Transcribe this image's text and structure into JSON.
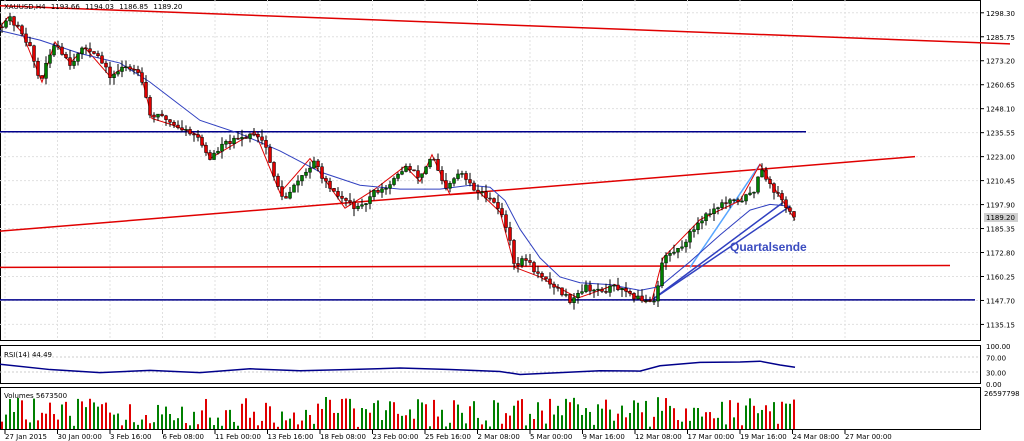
{
  "chart_data": {
    "type": "candlestick",
    "symbol": "XAUUSD,H4",
    "ohlc_header": [
      "1193.66",
      "1194.03",
      "1186.85",
      "1189.20"
    ],
    "current_price": "1189.20",
    "annotation": "Quartalsende",
    "price_axis": {
      "ylim": [
        1127,
        1305
      ],
      "ticks": [
        "1298.30",
        "1285.75",
        "1273.20",
        "1260.65",
        "1248.10",
        "1235.55",
        "1223.00",
        "1210.45",
        "1197.90",
        "1185.35",
        "1172.80",
        "1160.25",
        "1147.70",
        "1135.15"
      ]
    },
    "time_axis": {
      "labels": [
        "27 Jan 2015",
        "30 Jan 00:00",
        "3 Feb 16:00",
        "6 Feb 08:00",
        "11 Feb 00:00",
        "13 Feb 16:00",
        "18 Feb 08:00",
        "23 Feb 00:00",
        "25 Feb 16:00",
        "2 Mar 08:00",
        "5 Mar 00:00",
        "9 Mar 16:00",
        "12 Mar 08:00",
        "17 Mar 00:00",
        "19 Mar 16:00",
        "24 Mar 08:00",
        "27 Mar 00:00"
      ]
    },
    "price_path": [
      [
        0,
        1291
      ],
      [
        8,
        1296
      ],
      [
        22,
        1288
      ],
      [
        30,
        1280
      ],
      [
        40,
        1262
      ],
      [
        55,
        1283
      ],
      [
        70,
        1272
      ],
      [
        85,
        1280
      ],
      [
        95,
        1278
      ],
      [
        110,
        1265
      ],
      [
        125,
        1270
      ],
      [
        140,
        1268
      ],
      [
        150,
        1245
      ],
      [
        165,
        1243
      ],
      [
        180,
        1238
      ],
      [
        195,
        1235
      ],
      [
        210,
        1222
      ],
      [
        225,
        1230
      ],
      [
        240,
        1232
      ],
      [
        255,
        1236
      ],
      [
        265,
        1230
      ],
      [
        275,
        1210
      ],
      [
        285,
        1200
      ],
      [
        300,
        1212
      ],
      [
        315,
        1220
      ],
      [
        330,
        1205
      ],
      [
        345,
        1200
      ],
      [
        360,
        1195
      ],
      [
        375,
        1205
      ],
      [
        390,
        1208
      ],
      [
        405,
        1218
      ],
      [
        420,
        1212
      ],
      [
        432,
        1224
      ],
      [
        445,
        1205
      ],
      [
        460,
        1215
      ],
      [
        475,
        1205
      ],
      [
        490,
        1202
      ],
      [
        500,
        1195
      ],
      [
        510,
        1180
      ],
      [
        515,
        1165
      ],
      [
        525,
        1170
      ],
      [
        540,
        1160
      ],
      [
        555,
        1155
      ],
      [
        570,
        1148
      ],
      [
        585,
        1155
      ],
      [
        600,
        1152
      ],
      [
        615,
        1155
      ],
      [
        630,
        1150
      ],
      [
        645,
        1148
      ],
      [
        655,
        1148
      ],
      [
        663,
        1170
      ],
      [
        680,
        1175
      ],
      [
        700,
        1190
      ],
      [
        720,
        1198
      ],
      [
        740,
        1200
      ],
      [
        755,
        1205
      ],
      [
        760,
        1219
      ],
      [
        770,
        1208
      ],
      [
        785,
        1198
      ],
      [
        795,
        1190
      ]
    ],
    "ma_path": [
      [
        0,
        1289
      ],
      [
        40,
        1284
      ],
      [
        80,
        1277
      ],
      [
        120,
        1272
      ],
      [
        150,
        1262
      ],
      [
        175,
        1252
      ],
      [
        200,
        1242
      ],
      [
        240,
        1235
      ],
      [
        280,
        1226
      ],
      [
        320,
        1215
      ],
      [
        360,
        1208
      ],
      [
        400,
        1206
      ],
      [
        440,
        1206
      ],
      [
        470,
        1208
      ],
      [
        490,
        1207
      ],
      [
        505,
        1200
      ],
      [
        520,
        1185
      ],
      [
        540,
        1170
      ],
      [
        560,
        1160
      ],
      [
        580,
        1157
      ],
      [
        610,
        1156
      ],
      [
        640,
        1153
      ],
      [
        660,
        1155
      ],
      [
        690,
        1168
      ],
      [
        720,
        1182
      ],
      [
        750,
        1195
      ],
      [
        770,
        1198
      ],
      [
        790,
        1197
      ]
    ],
    "trend_lines": [
      {
        "color": "#e00000",
        "p1": [
          0,
          1302
        ],
        "p2": [
          1010,
          1282
        ]
      },
      {
        "color": "#e00000",
        "p1": [
          0,
          1184
        ],
        "p2": [
          915,
          1223
        ]
      },
      {
        "color": "#e00000",
        "p1": [
          0,
          1165
        ],
        "p2": [
          950,
          1166
        ]
      },
      {
        "color": "#00008b",
        "p1": [
          0,
          1236
        ],
        "p2": [
          806,
          1236
        ]
      },
      {
        "color": "#00008b",
        "p1": [
          0,
          1148
        ],
        "p2": [
          975,
          1148
        ]
      },
      {
        "color": "#3040c0",
        "p1": [
          652,
          1148
        ],
        "p2": [
          783,
          1199
        ]
      },
      {
        "color": "#3040c0",
        "p1": [
          652,
          1148
        ],
        "p2": [
          790,
          1197
        ]
      },
      {
        "color": "#58a6ff",
        "p1": [
          690,
          1165
        ],
        "p2": [
          760,
          1219
        ]
      }
    ],
    "zigzag_path": [
      [
        0,
        1291
      ],
      [
        8,
        1296
      ],
      [
        22,
        1288
      ],
      [
        42,
        1262
      ],
      [
        55,
        1283
      ],
      [
        70,
        1272
      ],
      [
        85,
        1280
      ],
      [
        110,
        1265
      ],
      [
        125,
        1270
      ],
      [
        140,
        1268
      ],
      [
        152,
        1243
      ],
      [
        170,
        1240
      ],
      [
        200,
        1234
      ],
      [
        210,
        1222
      ],
      [
        255,
        1236
      ],
      [
        280,
        1204
      ],
      [
        310,
        1222
      ],
      [
        345,
        1196
      ],
      [
        375,
        1206
      ],
      [
        405,
        1218
      ],
      [
        420,
        1210
      ],
      [
        432,
        1224
      ],
      [
        450,
        1203
      ],
      [
        480,
        1204
      ],
      [
        500,
        1194
      ],
      [
        515,
        1165
      ],
      [
        540,
        1160
      ],
      [
        560,
        1154
      ],
      [
        578,
        1149
      ],
      [
        600,
        1153
      ],
      [
        615,
        1156
      ],
      [
        645,
        1147
      ],
      [
        652,
        1148
      ],
      [
        663,
        1170
      ],
      [
        700,
        1190
      ],
      [
        740,
        1200
      ],
      [
        760,
        1219
      ],
      [
        775,
        1206
      ],
      [
        795,
        1190
      ]
    ],
    "rsi": {
      "label": "RSI(14) 44.49",
      "ticks": [
        "100.00",
        "70.00",
        "30.00",
        "0.00"
      ],
      "ylim": [
        0,
        100
      ],
      "path": [
        [
          0,
          52
        ],
        [
          50,
          38
        ],
        [
          100,
          30
        ],
        [
          150,
          36
        ],
        [
          200,
          30
        ],
        [
          250,
          40
        ],
        [
          300,
          35
        ],
        [
          350,
          38
        ],
        [
          400,
          42
        ],
        [
          450,
          38
        ],
        [
          500,
          33
        ],
        [
          520,
          25
        ],
        [
          560,
          30
        ],
        [
          600,
          35
        ],
        [
          640,
          34
        ],
        [
          660,
          48
        ],
        [
          700,
          57
        ],
        [
          740,
          58
        ],
        [
          760,
          60
        ],
        [
          780,
          50
        ],
        [
          795,
          44
        ]
      ]
    },
    "volume": {
      "label": "Volumes 5673500",
      "max_label": "26597798",
      "bar_count": 200
    }
  }
}
